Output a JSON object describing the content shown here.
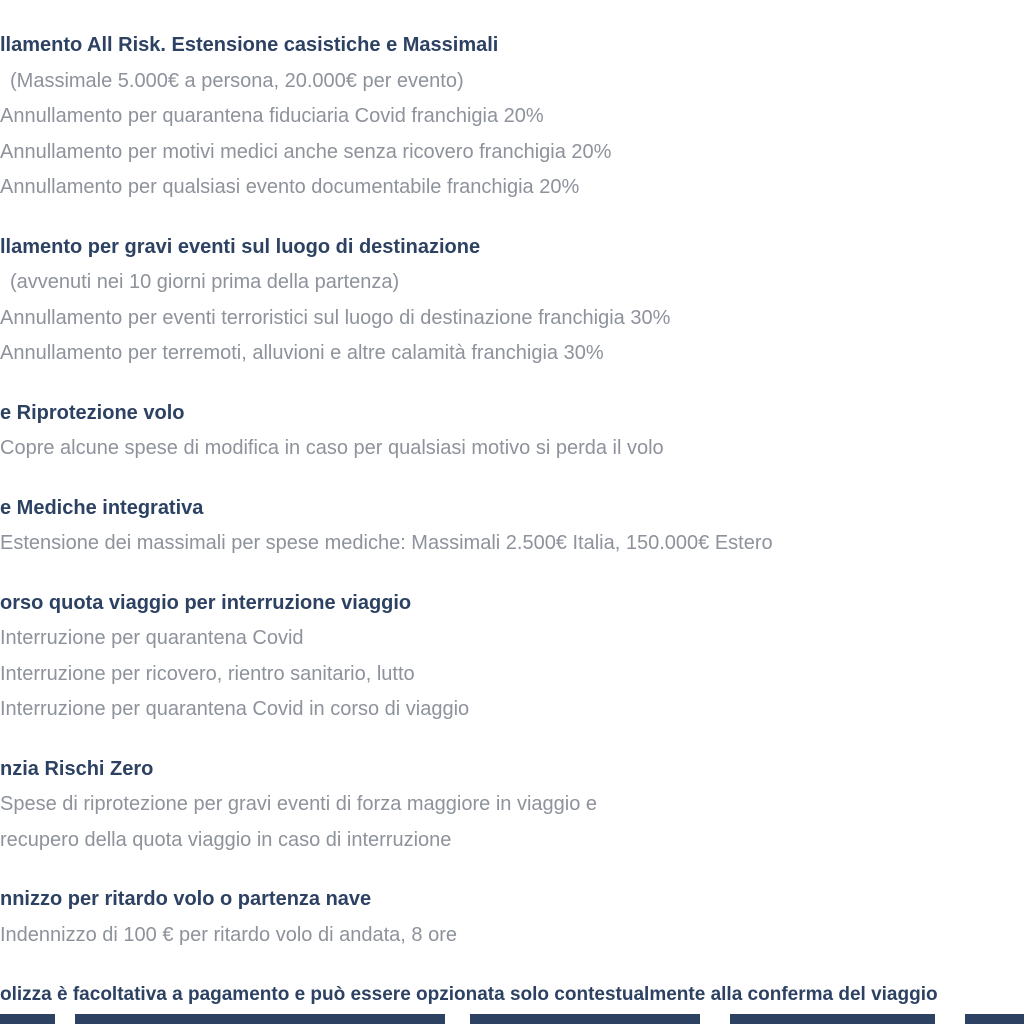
{
  "page": {
    "background": "#ffffff",
    "colors": {
      "heading_text": "#2d4263",
      "body_text": "#8d929b",
      "footer_text": "#2d4263",
      "bottom_bar": "#2d4263"
    }
  },
  "sections": [
    {
      "title": "llamento All Risk. Estensione casistiche e Massimali",
      "lines": [
        "(Massimale 5.000€ a persona, 20.000€ per evento)",
        "Annullamento per quarantena fiduciaria Covid franchigia 20%",
        "Annullamento per motivi medici anche senza ricovero franchigia 20%",
        "Annullamento per qualsiasi evento documentabile franchigia 20%"
      ]
    },
    {
      "title": "llamento per gravi eventi sul luogo di destinazione",
      "lines": [
        "(avvenuti nei 10 giorni prima della partenza)",
        "Annullamento per eventi terroristici sul luogo di destinazione franchigia 30%",
        "Annullamento per terremoti, alluvioni e altre calamità franchigia 30%"
      ]
    },
    {
      "title": "e Riprotezione volo",
      "lines": [
        "Copre alcune spese di modifica in caso per qualsiasi motivo si perda il volo"
      ]
    },
    {
      "title": "e Mediche integrativa",
      "lines": [
        "Estensione dei massimali per spese mediche: Massimali 2.500€ Italia, 150.000€ Estero"
      ]
    },
    {
      "title": "orso quota viaggio per interruzione viaggio",
      "lines": [
        "Interruzione per quarantena Covid",
        "Interruzione per ricovero, rientro sanitario, lutto",
        "Interruzione per quarantena Covid in corso di viaggio"
      ]
    },
    {
      "title": "nzia Rischi Zero",
      "lines": [
        "Spese di riprotezione per gravi eventi di forza maggiore in viaggio e",
        "recupero della quota viaggio in caso di interruzione"
      ]
    },
    {
      "title": "nnizzo per ritardo volo o partenza nave",
      "lines": [
        "Indennizzo di 100 € per ritardo volo di andata, 8 ore"
      ]
    }
  ],
  "footer": {
    "text": "olizza è facoltativa a pagamento e può essere opzionata solo contestualmente alla conferma del viaggio"
  }
}
